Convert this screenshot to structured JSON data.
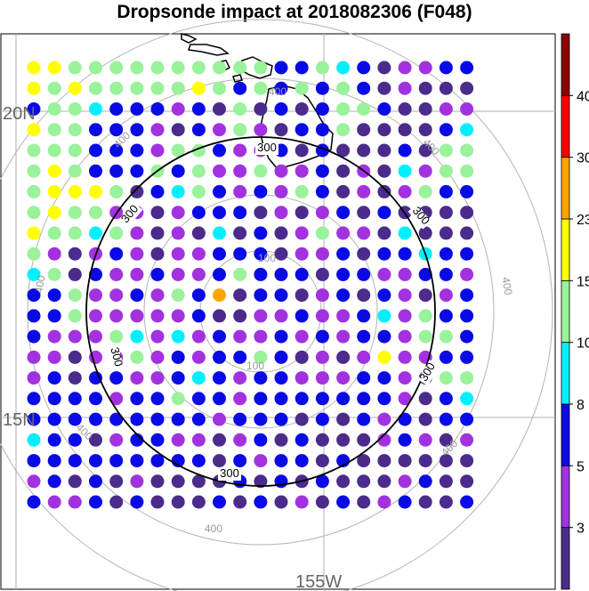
{
  "title": "Dropsonde impact at 2018082306 (F048)",
  "map": {
    "lat_labels": [
      "20N",
      "15N"
    ],
    "lon_labels": [
      "155W"
    ],
    "range_ring_labels": [
      "100",
      "200",
      "300",
      "400"
    ],
    "highlight_ring_value": "300"
  },
  "colorbar": {
    "colors": [
      "#4b2b8c",
      "#a232e0",
      "#0a0ae6",
      "#00f0ff",
      "#9af29a",
      "#ffff00",
      "#ffa500",
      "#ff0000",
      "#8b0000"
    ],
    "tick_labels": [
      "3",
      "5",
      "8",
      "10",
      "15",
      "23",
      "30",
      "40"
    ]
  },
  "palette_keys": [
    "P",
    "M",
    "B",
    "C",
    "G",
    "Y",
    "O"
  ],
  "palette": {
    "P": "#4b2b8c",
    "M": "#a232e0",
    "B": "#0a0ae6",
    "C": "#00f0ff",
    "G": "#9af29a",
    "Y": "#ffff00",
    "O": "#ffa500"
  },
  "grid": [
    "YYGGGGGGGGGGBBGCBPMMBB",
    "YGYGGGGGYGBGBGBGBPMPPP",
    "BGGCBBBMBPGPBPBGGBPPMM",
    "YGGBBBMPBMGMPBBGPPPPBC",
    "GGGBBBMGGBMMBPBPPPBPGG",
    "GYGBBBGBGMMGMMBPMPCMGG",
    "GYYYGPBCGBMBMGBPMPMGBB",
    "GYGGMMPMBBBPMPMBPBPPPP",
    "YGGCGMPMPCPBPMGMMPCPPP",
    "GMPMBMPMMBBBPMMBPBBCBB",
    "CGPBMMBMMBGBBBPBBMMBBM",
    "BBGMMBMGBOPBBPMBPBMPMB",
    "BBGMMMMMBPPMMBMMBCMGBB",
    "BMMMGCMCMBMMBMBMBBMGGB",
    "MMPMMGMBMBBGBPMPMYMMBB",
    "MBPBBMMBCBMBBMMMBBMPGG",
    "BBBBMBBGBBMBBBBBBBMPBC",
    "BBBBBBBBBMBBBPBPBMBPBB",
    "CBBPMBBMMPMBPBPPPMBMPM",
    "BBBBBBBBBPBMBBPBPPPPPP",
    "MBPBPMPPPPBPBPBPPPMBPP",
    "BMMBPBPPPBPBPMPBPMBPPB"
  ]
}
